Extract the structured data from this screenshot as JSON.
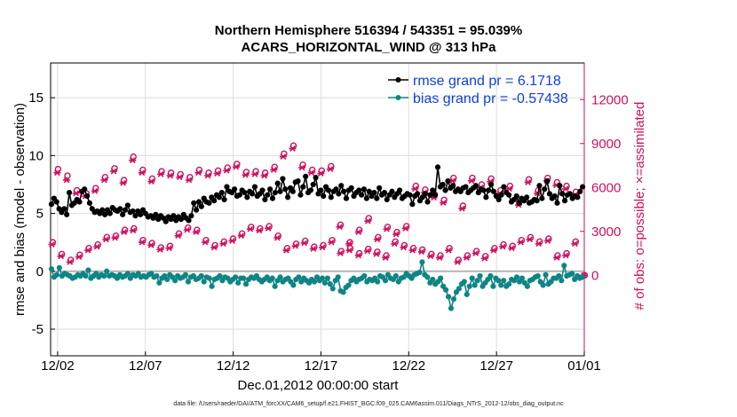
{
  "page": {
    "title_line1": "Northern Hemisphere 516394 / 543351 = 95.039%",
    "title_line2": "ACARS_HORIZONTAL_WIND @ 313 hPa",
    "xlabel": "Dec.01,2012 00:00:00 start",
    "footer": "data file: /Users/raeder/DAI/ATM_forcXX/CAM6_setup/f.e21.FHIST_BGC.f09_025.CAM6assim.011/Diags_NTrS_2012-12/obs_diag_output.nc"
  },
  "chart_data": {
    "type": "line",
    "ylabel_left": "rmse and bias (model - observation)",
    "ylabel_right": "# of obs: o=possible; ×=assimilated",
    "ylim_left": [
      -7.3,
      18
    ],
    "yticks_left": [
      "-5",
      "0",
      "5",
      "10",
      "15"
    ],
    "ylim_right": [
      -5500,
      14500
    ],
    "yticks_right": [
      "0",
      "3000",
      "6000",
      "9000",
      "12000"
    ],
    "xlim_days": [
      0.6,
      31
    ],
    "xticks": [
      {
        "day": 1,
        "label": "12/02"
      },
      {
        "day": 6,
        "label": "12/07"
      },
      {
        "day": 11,
        "label": "12/12"
      },
      {
        "day": 16,
        "label": "12/17"
      },
      {
        "day": 21,
        "label": "12/22"
      },
      {
        "day": 26,
        "label": "12/27"
      },
      {
        "day": 31,
        "label": "01/01"
      }
    ],
    "interval_days": 0.25,
    "colors": {
      "rmse": "#000000",
      "bias": "#0f8585",
      "obs": "#cf0f5e",
      "right_axis": "#cf0f5e",
      "legend_text": "#1040e0",
      "zero_line": "#b4b4b4",
      "grid": "#dddddd"
    },
    "legend": [
      {
        "label": "rmse grand pr = 6.1718"
      },
      {
        "label": "bias grand pr = -0.57438"
      }
    ],
    "series": [
      {
        "name": "rmse",
        "values": [
          5.8,
          6.3,
          6.0,
          5.4,
          5.1,
          5.4,
          4.9,
          6.8,
          5.7,
          5.9,
          6.2,
          6.0,
          6.9,
          7.1,
          6.5,
          5.9,
          5.4,
          5.1,
          5.2,
          5.0,
          5.3,
          4.9,
          5.3,
          5.0,
          5.5,
          5.3,
          5.2,
          5.4,
          4.9,
          5.3,
          5.7,
          5.1,
          5.2,
          4.8,
          5.2,
          4.9,
          5.3,
          5.0,
          4.7,
          4.8,
          4.6,
          4.9,
          4.5,
          4.8,
          4.6,
          4.3,
          4.7,
          4.5,
          4.8,
          4.4,
          4.7,
          4.5,
          4.9,
          4.6,
          4.4,
          4.8,
          5.9,
          5.3,
          6.0,
          5.6,
          6.3,
          6.0,
          5.9,
          6.4,
          6.1,
          6.6,
          6.4,
          6.8,
          6.2,
          7.3,
          6.9,
          6.8,
          7.1,
          6.5,
          6.6,
          7.0,
          6.8,
          6.4,
          6.9,
          6.7,
          7.3,
          6.5,
          6.7,
          7.0,
          6.2,
          6.6,
          7.1,
          6.3,
          6.8,
          7.6,
          6.9,
          8.0,
          7.1,
          6.4,
          7.2,
          6.9,
          7.7,
          7.8,
          6.6,
          7.3,
          8.2,
          6.8,
          7.0,
          7.5,
          8.1,
          6.7,
          7.0,
          6.5,
          7.3,
          7.0,
          6.4,
          6.9,
          7.1,
          6.7,
          7.4,
          6.9,
          6.3,
          7.0,
          7.2,
          6.5,
          6.8,
          7.0,
          6.6,
          7.1,
          6.3,
          6.9,
          6.5,
          6.8,
          6.3,
          7.2,
          6.6,
          6.8,
          6.2,
          6.6,
          6.9,
          6.4,
          6.7,
          7.0,
          6.3,
          6.5,
          6.7,
          6.6,
          5.8,
          6.5,
          6.7,
          6.1,
          6.4,
          6.7,
          6.0,
          6.6,
          7.0,
          6.6,
          9.0,
          7.3,
          7.5,
          7.0,
          7.8,
          7.2,
          7.4,
          6.9,
          7.1,
          6.9,
          7.2,
          7.3,
          6.8,
          7.0,
          7.2,
          7.4,
          6.8,
          7.1,
          7.0,
          6.4,
          7.0,
          7.5,
          6.9,
          6.5,
          6.2,
          6.6,
          7.3,
          6.8,
          6.6,
          6.0,
          6.2,
          6.5,
          5.9,
          6.3,
          6.1,
          6.4,
          5.9,
          6.0,
          6.2,
          6.1,
          7.4,
          6.3,
          7.1,
          7.8,
          6.7,
          6.3,
          6.5,
          5.9,
          7.4,
          6.7,
          6.1,
          6.6,
          6.7,
          6.3,
          6.5,
          6.4,
          6.9,
          7.3
        ]
      },
      {
        "name": "bias",
        "values": [
          0.2,
          -0.5,
          -0.3,
          0.3,
          -0.4,
          -0.2,
          -0.3,
          -0.4,
          -0.6,
          -0.5,
          -0.3,
          -0.4,
          -0.2,
          -0.4,
          0.1,
          -0.6,
          -0.4,
          -0.2,
          -0.5,
          -0.3,
          -0.4,
          0.0,
          -0.4,
          -0.3,
          -0.4,
          -0.6,
          -0.3,
          -0.5,
          -0.4,
          -0.2,
          -0.6,
          -0.3,
          -0.4,
          -0.2,
          -0.5,
          -0.4,
          -0.5,
          -0.3,
          -0.2,
          -0.5,
          -0.4,
          -1.0,
          -0.6,
          -0.4,
          -0.7,
          -0.3,
          -0.5,
          -0.8,
          -0.4,
          -0.6,
          -0.5,
          -0.3,
          -0.9,
          -0.5,
          -0.4,
          -0.7,
          -0.6,
          -0.4,
          -0.9,
          -0.5,
          -0.6,
          -1.3,
          -0.7,
          -0.6,
          -0.4,
          -0.8,
          -0.5,
          -0.6,
          -0.9,
          -0.7,
          -0.5,
          -1.0,
          -0.6,
          -0.6,
          -1.1,
          -0.7,
          -0.5,
          -0.6,
          -0.4,
          -0.7,
          -0.9,
          -0.7,
          -0.5,
          -0.8,
          -0.6,
          -1.3,
          -0.8,
          -0.5,
          -0.9,
          -0.7,
          -0.6,
          -0.9,
          -1.2,
          -0.7,
          -0.5,
          -0.9,
          -0.6,
          -0.8,
          -1.0,
          -0.7,
          -0.9,
          -0.5,
          -0.8,
          -0.6,
          -1.0,
          -0.6,
          -1.1,
          -1.5,
          -0.8,
          -0.5,
          -1.7,
          -1.8,
          -1.4,
          -1.2,
          -0.8,
          -0.6,
          -0.9,
          -0.7,
          -0.6,
          -0.4,
          -0.9,
          -0.7,
          -0.8,
          -0.6,
          -0.9,
          -0.4,
          -0.5,
          -0.8,
          -0.3,
          -0.6,
          -0.7,
          -0.4,
          -0.9,
          -0.6,
          -0.5,
          -0.2,
          -0.4,
          -0.6,
          -0.3,
          -0.2,
          -0.1,
          0.8,
          -0.3,
          -0.5,
          -1.0,
          -0.7,
          -1.1,
          -0.9,
          -0.6,
          -1.3,
          -1.6,
          -2.2,
          -3.2,
          -2.4,
          -1.8,
          -1.5,
          -1.1,
          -0.9,
          -2.0,
          -1.3,
          -0.6,
          -1.2,
          -0.8,
          -0.4,
          -1.3,
          -1.0,
          -0.7,
          -0.4,
          -1.3,
          -0.6,
          -0.8,
          -1.2,
          -0.8,
          -1.3,
          -1.1,
          -0.7,
          -0.8,
          -0.5,
          -0.9,
          -0.6,
          -1.0,
          -1.3,
          -0.8,
          -0.7,
          -0.5,
          -0.4,
          -0.9,
          -1.2,
          -0.3,
          -1.1,
          -0.9,
          -0.6,
          -0.6,
          -0.4,
          -0.8,
          0.5,
          -0.4,
          -0.3,
          -0.2,
          -0.7,
          -0.4,
          -0.6,
          -0.5
        ]
      },
      {
        "name": "obs_possible",
        "marker": "o",
        "values": [
          7250,
          6800,
          5800,
          5600,
          5950,
          6700,
          7300,
          6500,
          8100,
          7200,
          6600,
          7100,
          7000,
          6900,
          6700,
          7200,
          7000,
          7150,
          7350,
          7600,
          7050,
          7100,
          7000,
          7400,
          8300,
          8850,
          7550,
          7200,
          7150,
          7450,
          3450,
          2250,
          3100,
          3900,
          2600,
          3300,
          2950,
          3350,
          6100,
          5850,
          5500,
          5150,
          6650,
          4750,
          6650,
          6200,
          6600,
          5800,
          6100,
          5000,
          6550,
          5800,
          6650,
          6350,
          6100,
          5700
        ]
      },
      {
        "name": "obs_assimilated",
        "marker": "*",
        "values": [
          7000,
          6500,
          5600,
          5400,
          5750,
          6500,
          7100,
          6300,
          7850,
          7000,
          6400,
          6900,
          6800,
          6700,
          6500,
          7000,
          6800,
          6950,
          7150,
          7400,
          6850,
          6900,
          6800,
          7200,
          8100,
          8650,
          7350,
          7000,
          6950,
          7250,
          3300,
          2150,
          2950,
          3700,
          2450,
          3150,
          2800,
          3200,
          5900,
          5650,
          5300,
          4950,
          6450,
          4550,
          6450,
          6000,
          6400,
          5600,
          5900,
          4800,
          6350,
          5600,
          6450,
          6150,
          5900,
          5500
        ]
      },
      {
        "name": "obs_timeline",
        "note": "count-axis values plotted on the lower band",
        "possible": [
          2250,
          1450,
          1050,
          1400,
          1850,
          2100,
          2600,
          2700,
          3100,
          3200,
          2400,
          2200,
          1900,
          2000,
          2850,
          3250,
          3100,
          2400,
          2050,
          2300,
          2500,
          2850,
          3300,
          3200,
          3350,
          2700,
          1850,
          2150,
          2350,
          1950,
          2050,
          2400,
          1650,
          1850,
          1500,
          1800,
          1600,
          1350,
          2300,
          2050,
          1850,
          1750,
          1450,
          1350,
          1850,
          1050,
          1350,
          1650,
          1300,
          1850,
          2100,
          2000,
          2400,
          2600,
          2300,
          2500,
          1350,
          1500,
          2300,
          0
        ],
        "assimilated": [
          2100,
          1300,
          900,
          1250,
          1700,
          1950,
          2450,
          2550,
          2950,
          3050,
          2250,
          2050,
          1750,
          1850,
          2700,
          3100,
          2950,
          2250,
          1900,
          2150,
          2350,
          2700,
          3150,
          3050,
          3200,
          2550,
          1700,
          2000,
          2200,
          1800,
          1900,
          2250,
          1500,
          1700,
          1350,
          1650,
          1450,
          1200,
          2150,
          1900,
          1700,
          1600,
          1300,
          1200,
          1700,
          900,
          1200,
          1500,
          1150,
          1700,
          1950,
          1850,
          2250,
          2450,
          2150,
          2350,
          1200,
          1350,
          2150,
          0
        ]
      }
    ]
  }
}
